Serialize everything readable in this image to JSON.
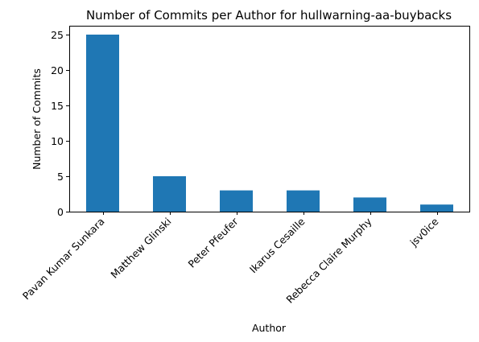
{
  "chart_data": {
    "type": "bar",
    "title": "Number of Commits per Author for hullwarning-aa-buybacks",
    "xlabel": "Author",
    "ylabel": "Number of Commits",
    "categories": [
      "Pavan Kumar Sunkara",
      "Matthew Glinski",
      "Peter Pfeufer",
      "Ikarus Cesaille",
      "Rebecca Claire Murphy",
      "jsv0ice"
    ],
    "values": [
      25,
      5,
      3,
      3,
      2,
      1
    ],
    "ylim": [
      0,
      26.25
    ],
    "yticks": [
      0,
      5,
      10,
      15,
      20,
      25
    ],
    "bar_color": "#1f77b4",
    "grid": false,
    "legend": "none"
  }
}
